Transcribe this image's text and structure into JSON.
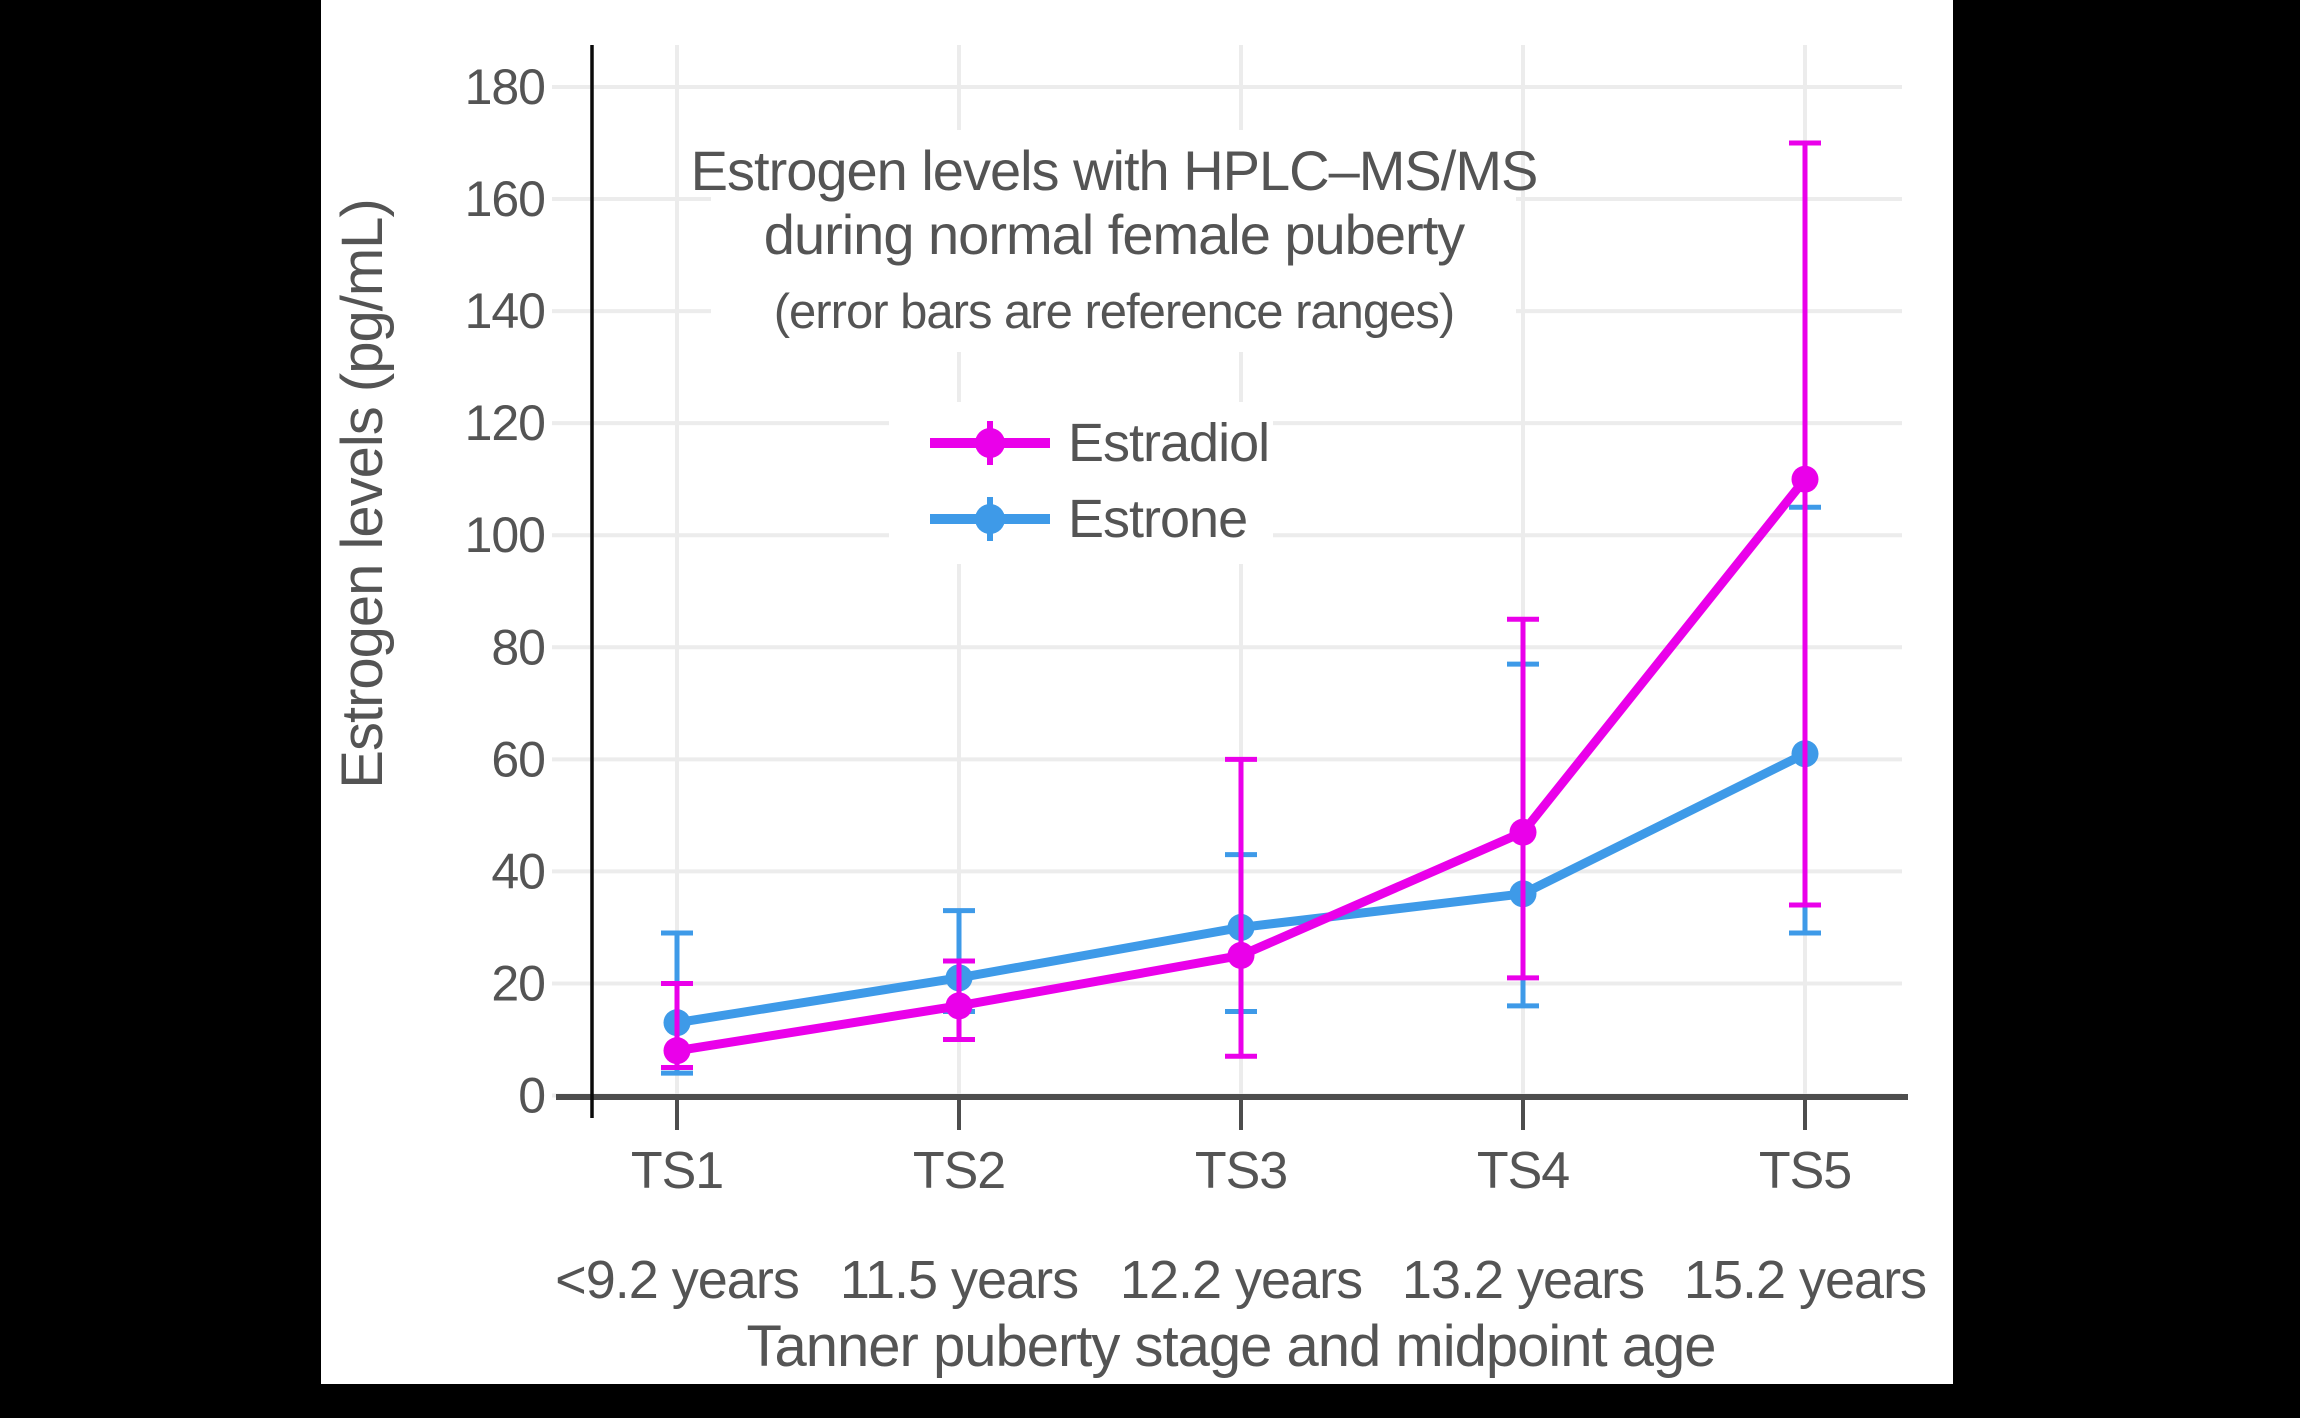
{
  "frame": {
    "background_color": "#000000",
    "canvas_color": "#ffffff"
  },
  "chart_data": {
    "type": "line",
    "title": "Estrogen levels with HPLC–MS/MS",
    "title_line2": "during normal female puberty",
    "subtitle": "(error bars are reference ranges)",
    "xlabel": "Tanner puberty stage and midpoint age",
    "ylabel": "Estrogen levels (pg/mL)",
    "ylim": [
      0,
      190
    ],
    "yticks": [
      0,
      20,
      40,
      60,
      80,
      100,
      120,
      140,
      160,
      180
    ],
    "grid": true,
    "legend_position": "upper-left-of-center",
    "categories": [
      {
        "stage": "TS1",
        "age": "<9.2 years"
      },
      {
        "stage": "TS2",
        "age": "11.5 years"
      },
      {
        "stage": "TS3",
        "age": "12.2 years"
      },
      {
        "stage": "TS4",
        "age": "13.2 years"
      },
      {
        "stage": "TS5",
        "age": "15.2 years"
      }
    ],
    "series": [
      {
        "name": "Estradiol",
        "color": "#EA00EA",
        "values": [
          8,
          16,
          25,
          47,
          110
        ],
        "range_low": [
          5,
          10,
          7,
          21,
          34
        ],
        "range_high": [
          20,
          24,
          60,
          85,
          170
        ]
      },
      {
        "name": "Estrone",
        "color": "#3E9AE8",
        "values": [
          13,
          21,
          30,
          36,
          61
        ],
        "range_low": [
          4,
          15,
          15,
          16,
          29
        ],
        "range_high": [
          29,
          33,
          43,
          77,
          105
        ]
      }
    ],
    "colors": {
      "text": "#545454",
      "grid": "#ECECEC",
      "x_axis_line": "#4D4D4D",
      "y_axis_line": "#0A0A0A"
    }
  }
}
